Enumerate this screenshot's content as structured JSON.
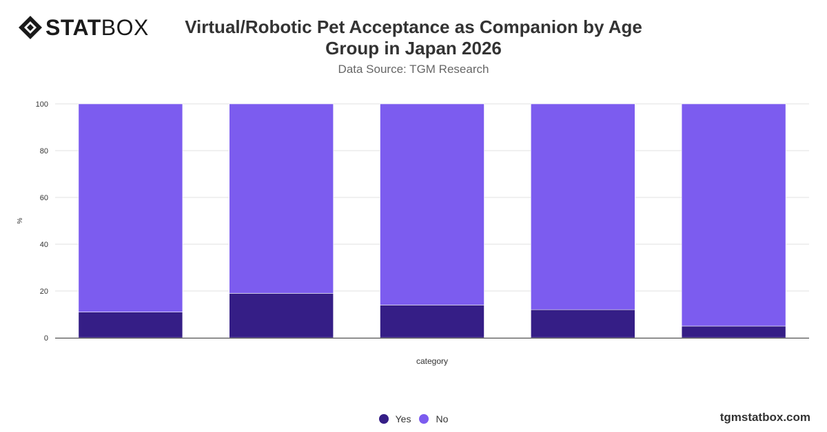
{
  "brand": {
    "logo_text_bold": "STAT",
    "logo_text_light": "BOX",
    "footer_url": "tgmstatbox.com",
    "logo_icon": "diamond-logo-icon"
  },
  "header": {
    "title_line1": "Virtual/Robotic Pet Acceptance as Companion by Age",
    "title_line2": "Group in Japan 2026",
    "subtitle": "Data Source: TGM Research"
  },
  "colors": {
    "yes": "#351e86",
    "no": "#7c5cef",
    "grid": "#e0e0e0",
    "axis": "#333333"
  },
  "chart_data": {
    "type": "bar",
    "stacked": true,
    "xlabel": "category",
    "ylabel": "%",
    "ylim": [
      0,
      100
    ],
    "yticks": [
      0,
      20,
      40,
      60,
      80,
      100
    ],
    "categories": [
      "",
      "",
      "",
      "",
      ""
    ],
    "series": [
      {
        "name": "Yes",
        "values": [
          11,
          19,
          14,
          12,
          5
        ]
      },
      {
        "name": "No",
        "values": [
          89,
          81,
          86,
          88,
          95
        ]
      }
    ],
    "grid": true,
    "legend_position": "bottom-center"
  }
}
